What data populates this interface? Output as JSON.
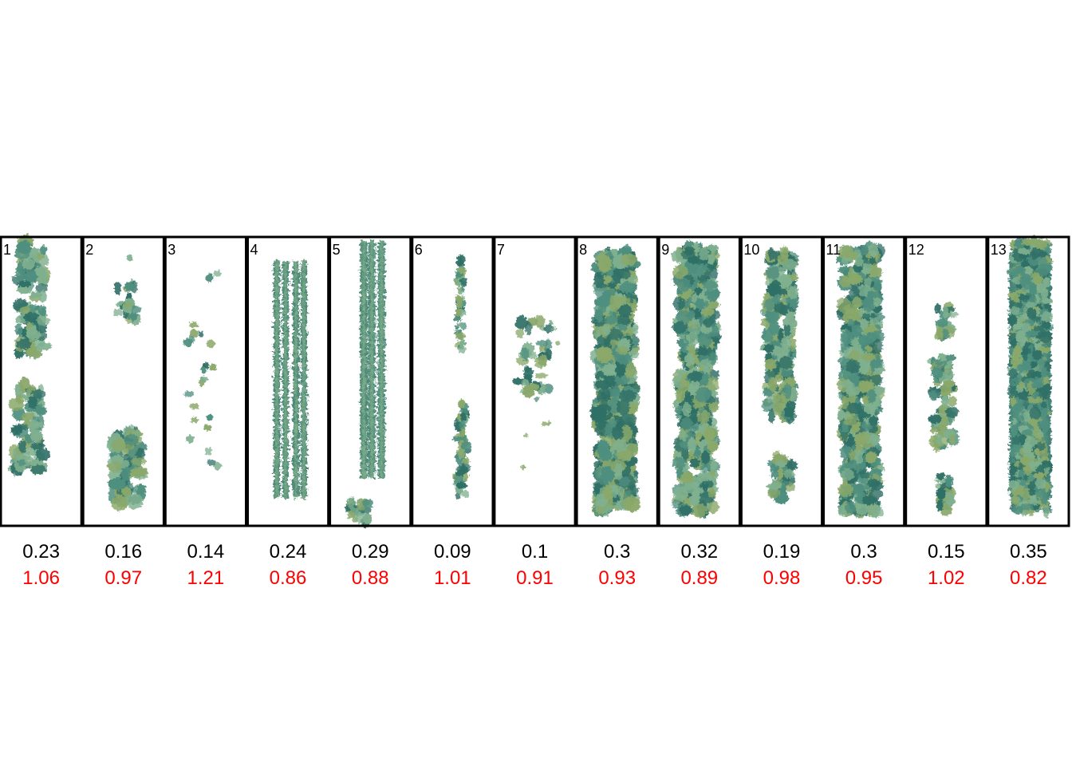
{
  "colors": {
    "frame": "#000000",
    "value_a": "#000000",
    "value_b": "#ff0000",
    "density_dark": "#2f6f66",
    "density_mid": "#4f8f7f",
    "density_light": "#7fb08f",
    "density_yellowgreen": "#8aa86a"
  },
  "panels": [
    {
      "number": "1",
      "value_a": "0.23",
      "value_b": "1.06",
      "style": "blobs"
    },
    {
      "number": "2",
      "value_a": "0.16",
      "value_b": "0.97",
      "style": "sparse-ends"
    },
    {
      "number": "3",
      "value_a": "0.14",
      "value_b": "1.21",
      "style": "specks"
    },
    {
      "number": "4",
      "value_a": "0.24",
      "value_b": "0.86",
      "style": "three-strands"
    },
    {
      "number": "5",
      "value_a": "0.29",
      "value_b": "0.88",
      "style": "double-strand"
    },
    {
      "number": "6",
      "value_a": "0.09",
      "value_b": "1.01",
      "style": "thin-line"
    },
    {
      "number": "7",
      "value_a": "0.1",
      "value_b": "0.91",
      "style": "scattered"
    },
    {
      "number": "8",
      "value_a": "0.3",
      "value_b": "0.93",
      "style": "thick-rod"
    },
    {
      "number": "9",
      "value_a": "0.32",
      "value_b": "0.89",
      "style": "lattice-rod"
    },
    {
      "number": "10",
      "value_a": "0.19",
      "value_b": "0.98",
      "style": "patchy-rod"
    },
    {
      "number": "11",
      "value_a": "0.3",
      "value_b": "0.95",
      "style": "lattice-rod"
    },
    {
      "number": "12",
      "value_a": "0.15",
      "value_b": "1.02",
      "style": "broken-rod"
    },
    {
      "number": "13",
      "value_a": "0.35",
      "value_b": "0.82",
      "style": "full-rod"
    }
  ]
}
